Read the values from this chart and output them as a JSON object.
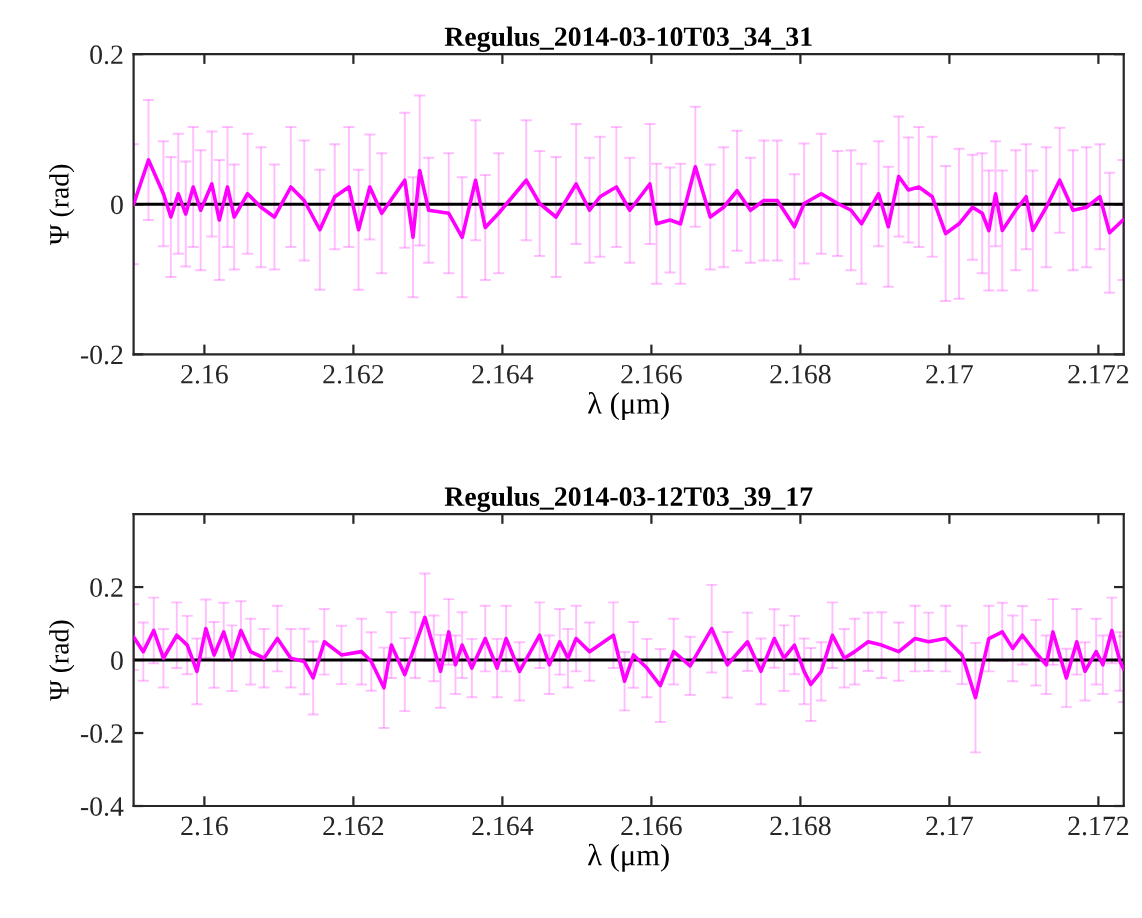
{
  "chart_data": [
    {
      "type": "line",
      "title": "Regulus_2014-03-10T03_34_31",
      "xlabel": "λ (μm)",
      "ylabel": "Ψ (rad)",
      "xlim": [
        2.15905,
        2.17234
      ],
      "ylim": [
        -0.2,
        0.2
      ],
      "xticks": [
        2.16,
        2.162,
        2.164,
        2.166,
        2.168,
        2.17,
        2.172
      ],
      "yticks": [
        -0.2,
        0,
        0.2
      ],
      "grid": false,
      "legend": false,
      "marker": "none",
      "line_style": "solid",
      "ref_lines": [
        {
          "axis": "y",
          "value": 0,
          "color": "#000000"
        }
      ],
      "series": [
        {
          "color": "#ff00ff",
          "x": [
            2.15905,
            2.15925,
            2.15945,
            2.15955,
            2.15965,
            2.15975,
            2.15985,
            2.15995,
            2.1601,
            2.1602,
            2.16031,
            2.1604,
            2.16058,
            2.16076,
            2.16094,
            2.16116,
            2.16134,
            2.16155,
            2.16175,
            2.16194,
            2.16207,
            2.16222,
            2.16238,
            2.16269,
            2.1628,
            2.16289,
            2.16301,
            2.16328,
            2.16346,
            2.16364,
            2.16377,
            2.16395,
            2.16432,
            2.1645,
            2.16472,
            2.16499,
            2.16517,
            2.16531,
            2.16553,
            2.16571,
            2.16598,
            2.16607,
            2.16625,
            2.16639,
            2.16659,
            2.16679,
            2.16697,
            2.16715,
            2.16733,
            2.16751,
            2.16769,
            2.16792,
            2.16805,
            2.16828,
            2.1685,
            2.16868,
            2.16882,
            2.16905,
            2.16918,
            2.16932,
            2.16945,
            2.16959,
            2.16977,
            2.16995,
            2.17013,
            2.17031,
            2.17044,
            2.17053,
            2.17062,
            2.17071,
            2.17089,
            2.17103,
            2.17112,
            2.1713,
            2.17148,
            2.17166,
            2.17184,
            2.17202,
            2.17215,
            2.17233
          ],
          "values": [
            0,
            0.059,
            0.014,
            -0.017,
            0.014,
            -0.013,
            0.023,
            -0.008,
            0.027,
            -0.021,
            0.023,
            -0.017,
            0.014,
            -0.004,
            -0.017,
            0.023,
            0.005,
            -0.034,
            0.01,
            0.023,
            -0.034,
            0.023,
            -0.012,
            0.032,
            -0.044,
            0.045,
            -0.008,
            -0.012,
            -0.044,
            0.032,
            -0.031,
            -0.012,
            0.032,
            0.001,
            -0.017,
            0.027,
            -0.008,
            0.01,
            0.023,
            -0.008,
            0.027,
            -0.026,
            -0.021,
            -0.026,
            0.05,
            -0.017,
            -0.004,
            0.018,
            -0.008,
            0.005,
            0.005,
            -0.03,
            0.001,
            0.014,
            0.001,
            -0.008,
            -0.026,
            0.014,
            -0.03,
            0.037,
            0.019,
            0.023,
            0.01,
            -0.039,
            -0.026,
            -0.004,
            -0.012,
            -0.035,
            0.014,
            -0.035,
            -0.008,
            0.01,
            -0.035,
            -0.004,
            0.032,
            -0.008,
            -0.004,
            0.01,
            -0.038,
            -0.021
          ],
          "errors": [
            0.08,
            0.08,
            0.07,
            0.08,
            0.08,
            0.07,
            0.08,
            0.08,
            0.07,
            0.08,
            0.08,
            0.07,
            0.08,
            0.08,
            0.07,
            0.08,
            0.08,
            0.08,
            0.07,
            0.08,
            0.08,
            0.07,
            0.08,
            0.09,
            0.08,
            0.1,
            0.07,
            0.08,
            0.08,
            0.08,
            0.07,
            0.08,
            0.08,
            0.07,
            0.08,
            0.08,
            0.07,
            0.08,
            0.08,
            0.07,
            0.08,
            0.08,
            0.07,
            0.08,
            0.08,
            0.07,
            0.08,
            0.08,
            0.07,
            0.08,
            0.08,
            0.07,
            0.08,
            0.08,
            0.07,
            0.08,
            0.08,
            0.07,
            0.08,
            0.08,
            0.07,
            0.08,
            0.08,
            0.09,
            0.1,
            0.07,
            0.08,
            0.08,
            0.07,
            0.08,
            0.08,
            0.07,
            0.08,
            0.08,
            0.07,
            0.08,
            0.08,
            0.07,
            0.08,
            0.08
          ]
        }
      ]
    },
    {
      "type": "line",
      "title": "Regulus_2014-03-12T03_39_17",
      "xlabel": "λ (μm)",
      "ylabel": "Ψ (rad)",
      "xlim": [
        2.15905,
        2.17234
      ],
      "ylim": [
        -0.4,
        0.4
      ],
      "xticks": [
        2.16,
        2.162,
        2.164,
        2.166,
        2.168,
        2.17,
        2.172
      ],
      "yticks": [
        -0.4,
        -0.2,
        0,
        0.2
      ],
      "grid": false,
      "legend": false,
      "marker": "none",
      "line_style": "solid",
      "ref_lines": [
        {
          "axis": "y",
          "value": 0,
          "color": "#000000"
        }
      ],
      "series": [
        {
          "color": "#ff00ff",
          "x": [
            2.15905,
            2.15918,
            2.15932,
            2.15945,
            2.15963,
            2.15977,
            2.1599,
            2.16002,
            2.16013,
            2.16026,
            2.16037,
            2.16049,
            2.16062,
            2.1608,
            2.16098,
            2.16116,
            2.16134,
            2.16146,
            2.16161,
            2.16184,
            2.16211,
            2.16224,
            2.16241,
            2.16251,
            2.16269,
            2.16283,
            2.16296,
            2.16308,
            2.16317,
            2.16328,
            2.16337,
            2.16346,
            2.16359,
            2.16377,
            2.16393,
            2.16405,
            2.16423,
            2.1645,
            2.16463,
            2.16477,
            2.16488,
            2.16499,
            2.16517,
            2.16549,
            2.16564,
            2.16576,
            2.16594,
            2.16612,
            2.1663,
            2.16652,
            2.16681,
            2.16702,
            2.16729,
            2.16747,
            2.16765,
            2.16778,
            2.16792,
            2.16805,
            2.16814,
            2.16828,
            2.16843,
            2.16859,
            2.16873,
            2.16891,
            2.16909,
            2.16932,
            2.16954,
            2.16972,
            2.16995,
            2.17017,
            2.17035,
            2.17053,
            2.17071,
            2.17085,
            2.17098,
            2.17116,
            2.1713,
            2.17139,
            2.17157,
            2.17171,
            2.17182,
            2.17197,
            2.17206,
            2.17218,
            2.17229,
            2.17234
          ],
          "values": [
            0.063,
            0.023,
            0.081,
            0.005,
            0.068,
            0.041,
            -0.031,
            0.086,
            0.014,
            0.077,
            0.005,
            0.081,
            0.023,
            0.005,
            0.059,
            0.005,
            -0.004,
            -0.049,
            0.05,
            0.014,
            0.023,
            -0.004,
            -0.076,
            0.041,
            -0.04,
            0.041,
            0.117,
            0.032,
            -0.031,
            0.077,
            -0.013,
            0.041,
            -0.022,
            0.059,
            -0.022,
            0.059,
            -0.031,
            0.068,
            -0.013,
            0.05,
            0.005,
            0.059,
            0.023,
            0.068,
            -0.058,
            0.014,
            -0.022,
            -0.07,
            0.023,
            -0.016,
            0.086,
            -0.013,
            0.05,
            -0.031,
            0.059,
            0.005,
            0.041,
            -0.031,
            -0.067,
            -0.031,
            0.068,
            0.005,
            0.023,
            0.05,
            0.041,
            0.023,
            0.059,
            0.05,
            0.059,
            0.014,
            -0.103,
            0.059,
            0.077,
            0.032,
            0.068,
            0.02,
            -0.013,
            0.077,
            -0.049,
            0.05,
            -0.031,
            0.023,
            -0.013,
            0.081,
            -0.004,
            -0.025
          ],
          "errors": [
            0.09,
            0.08,
            0.09,
            0.08,
            0.09,
            0.08,
            0.09,
            0.08,
            0.09,
            0.08,
            0.09,
            0.08,
            0.09,
            0.08,
            0.09,
            0.08,
            0.09,
            0.1,
            0.09,
            0.08,
            0.09,
            0.08,
            0.11,
            0.09,
            0.1,
            0.09,
            0.12,
            0.09,
            0.1,
            0.09,
            0.08,
            0.09,
            0.08,
            0.09,
            0.08,
            0.09,
            0.08,
            0.09,
            0.08,
            0.09,
            0.08,
            0.09,
            0.08,
            0.09,
            0.08,
            0.09,
            0.08,
            0.1,
            0.09,
            0.08,
            0.12,
            0.09,
            0.08,
            0.09,
            0.08,
            0.09,
            0.08,
            0.09,
            0.1,
            0.08,
            0.09,
            0.08,
            0.09,
            0.08,
            0.09,
            0.08,
            0.09,
            0.08,
            0.09,
            0.08,
            0.15,
            0.09,
            0.08,
            0.09,
            0.08,
            0.09,
            0.08,
            0.09,
            0.08,
            0.09,
            0.08,
            0.09,
            0.08,
            0.09,
            0.08,
            0.09
          ]
        }
      ]
    }
  ]
}
